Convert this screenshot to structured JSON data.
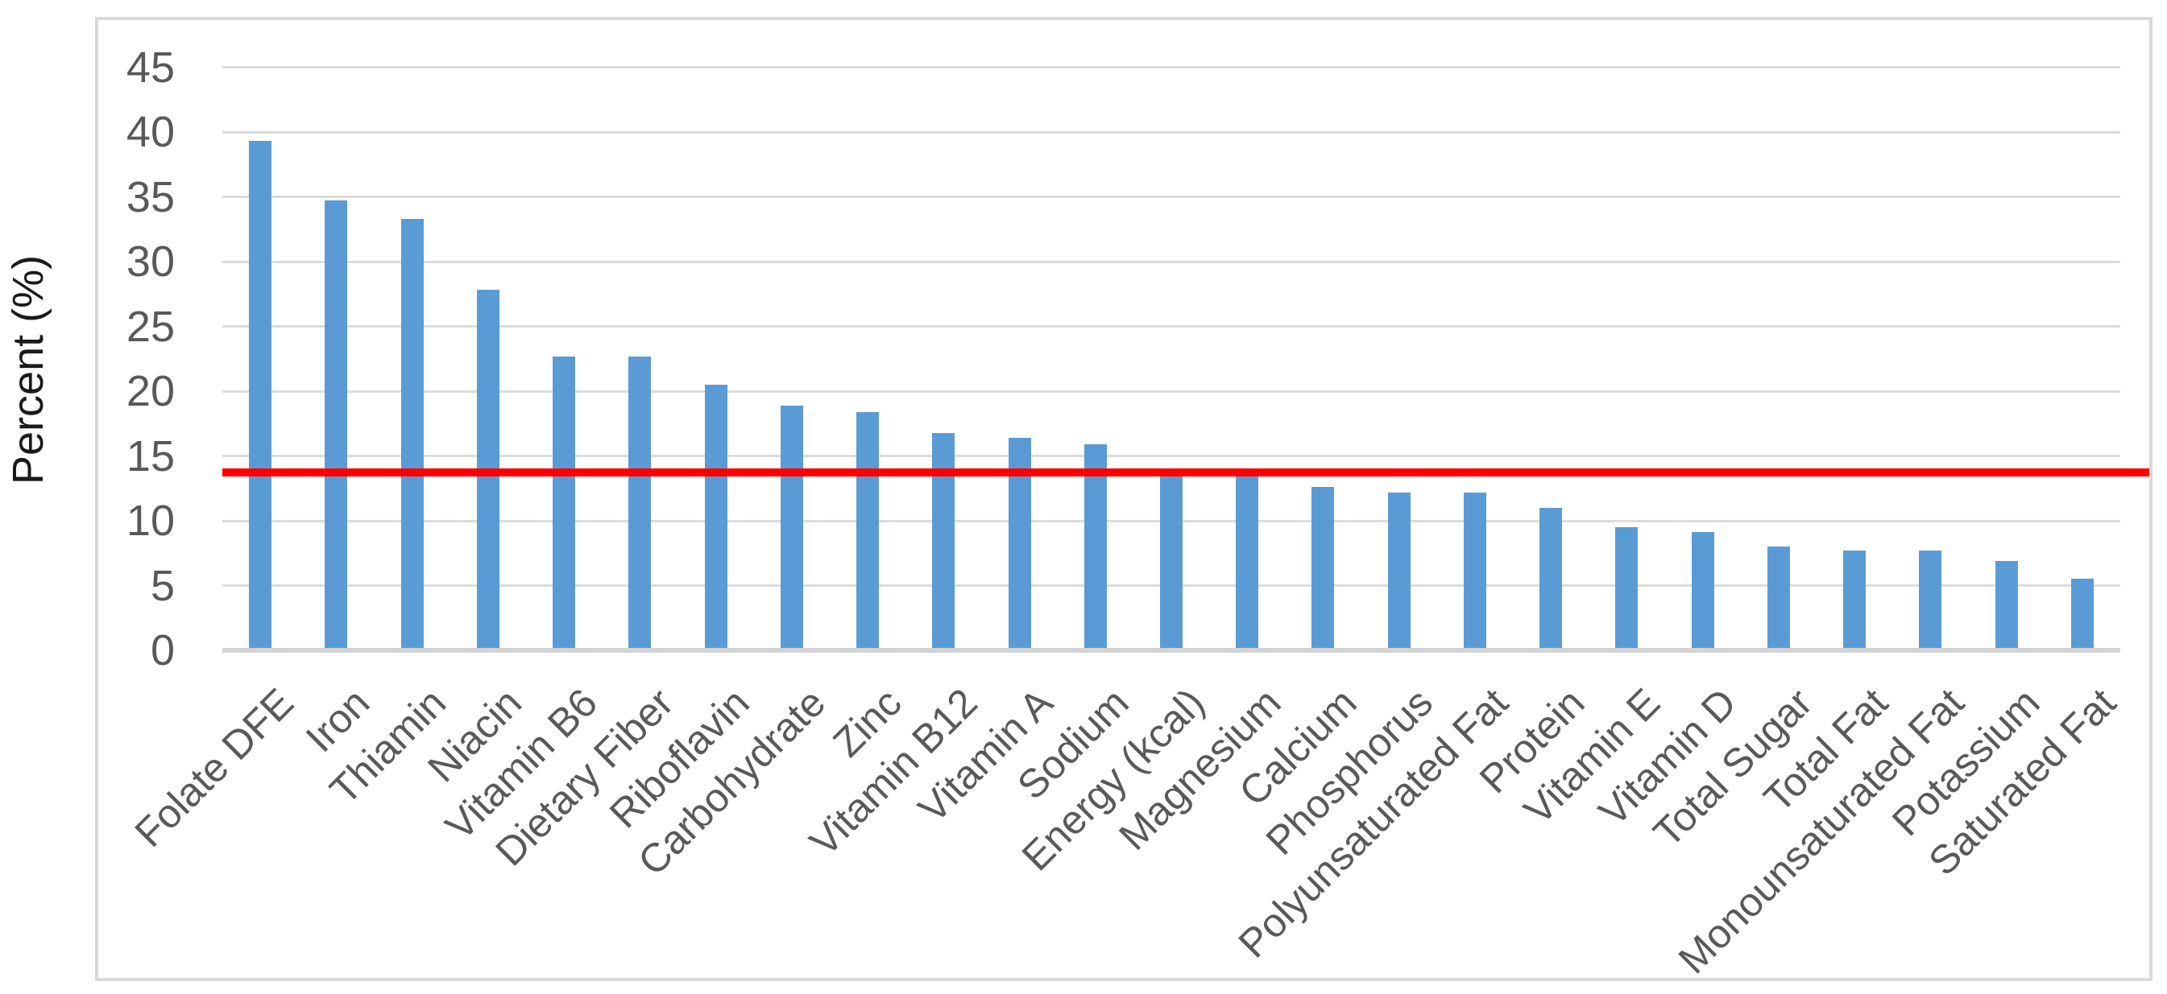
{
  "chart_data": {
    "type": "bar",
    "title": "",
    "xlabel": "",
    "ylabel": "Percent (%)",
    "ylim": [
      0,
      45
    ],
    "yticks": [
      0,
      5,
      10,
      15,
      20,
      25,
      30,
      35,
      40,
      45
    ],
    "grid": true,
    "legend": false,
    "categories": [
      "Folate DFE",
      "Iron",
      "Thiamin",
      "Niacin",
      "Vitamin B6",
      "Dietary Fiber",
      "Riboflavin",
      "Carbohydrate",
      "Zinc",
      "Vitamin B12",
      "Vitamin A",
      "Sodium",
      "Energy (kcal)",
      "Magnesium",
      "Calcium",
      "Phosphorus",
      "Polyunsaturated Fat",
      "Protein",
      "Vitamin E",
      "Vitamin D",
      "Total Sugar",
      "Total Fat",
      "Monounsaturated Fat",
      "Potassium",
      "Saturated Fat"
    ],
    "values": [
      39.3,
      34.7,
      33.3,
      27.8,
      22.7,
      22.7,
      20.5,
      18.9,
      18.4,
      16.8,
      16.4,
      15.9,
      13.6,
      13.6,
      12.6,
      12.2,
      12.2,
      11.0,
      9.5,
      9.1,
      8.0,
      7.7,
      7.7,
      6.9,
      5.5
    ],
    "reference_line": {
      "value": 13.7,
      "color": "#FF0000"
    },
    "bar_color": "#5B9BD5",
    "gridline_color": "#DCDCDC",
    "tick_label_color": "#595959",
    "background_color": "#FFFFFF"
  }
}
